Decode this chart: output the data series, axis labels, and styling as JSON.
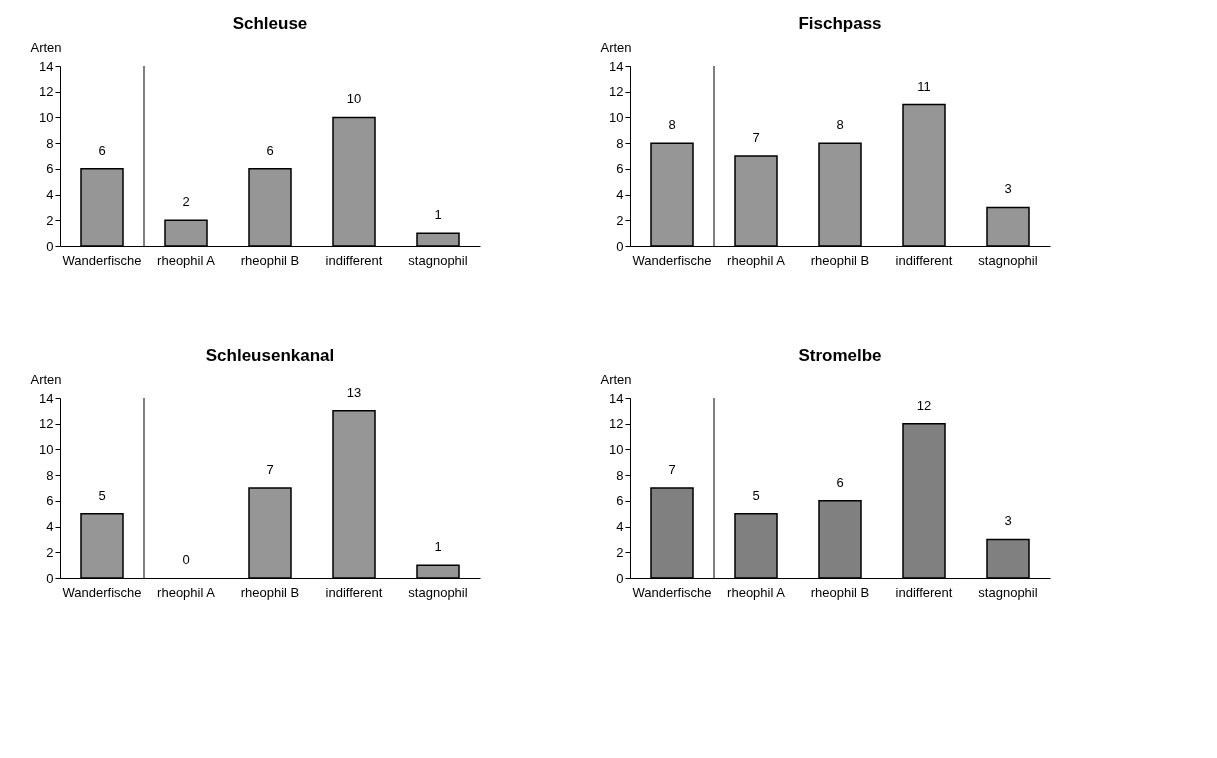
{
  "chart_data": [
    {
      "type": "bar",
      "title": "Schleuse",
      "ylabel": "Arten",
      "categories": [
        "Wanderfische",
        "rheophil A",
        "rheophil B",
        "indifferent",
        "stagnophil"
      ],
      "values": [
        6,
        2,
        6,
        10,
        1
      ],
      "color": "#969696",
      "ylim": [
        0,
        14
      ],
      "yticks": [
        0,
        2,
        4,
        6,
        8,
        10,
        12,
        14
      ],
      "data_labels": true
    },
    {
      "type": "bar",
      "title": "Fischpass",
      "ylabel": "Arten",
      "categories": [
        "Wanderfische",
        "rheophil A",
        "rheophil B",
        "indifferent",
        "stagnophil"
      ],
      "values": [
        8,
        7,
        8,
        11,
        3
      ],
      "color": "#969696",
      "ylim": [
        0,
        14
      ],
      "yticks": [
        0,
        2,
        4,
        6,
        8,
        10,
        12,
        14
      ],
      "data_labels": true
    },
    {
      "type": "bar",
      "title": "Schleusenkanal",
      "ylabel": "Arten",
      "categories": [
        "Wanderfische",
        "rheophil A",
        "rheophil B",
        "indifferent",
        "stagnophil"
      ],
      "values": [
        5,
        0,
        7,
        13,
        1
      ],
      "color": "#969696",
      "ylim": [
        0,
        14
      ],
      "yticks": [
        0,
        2,
        4,
        6,
        8,
        10,
        12,
        14
      ],
      "data_labels": true
    },
    {
      "type": "bar",
      "title": "Stromelbe",
      "ylabel": "Arten",
      "categories": [
        "Wanderfische",
        "rheophil A",
        "rheophil B",
        "indifferent",
        "stagnophil"
      ],
      "values": [
        7,
        5,
        6,
        12,
        3
      ],
      "color": "#808080",
      "ylim": [
        0,
        14
      ],
      "yticks": [
        0,
        2,
        4,
        6,
        8,
        10,
        12,
        14
      ],
      "data_labels": true
    }
  ]
}
